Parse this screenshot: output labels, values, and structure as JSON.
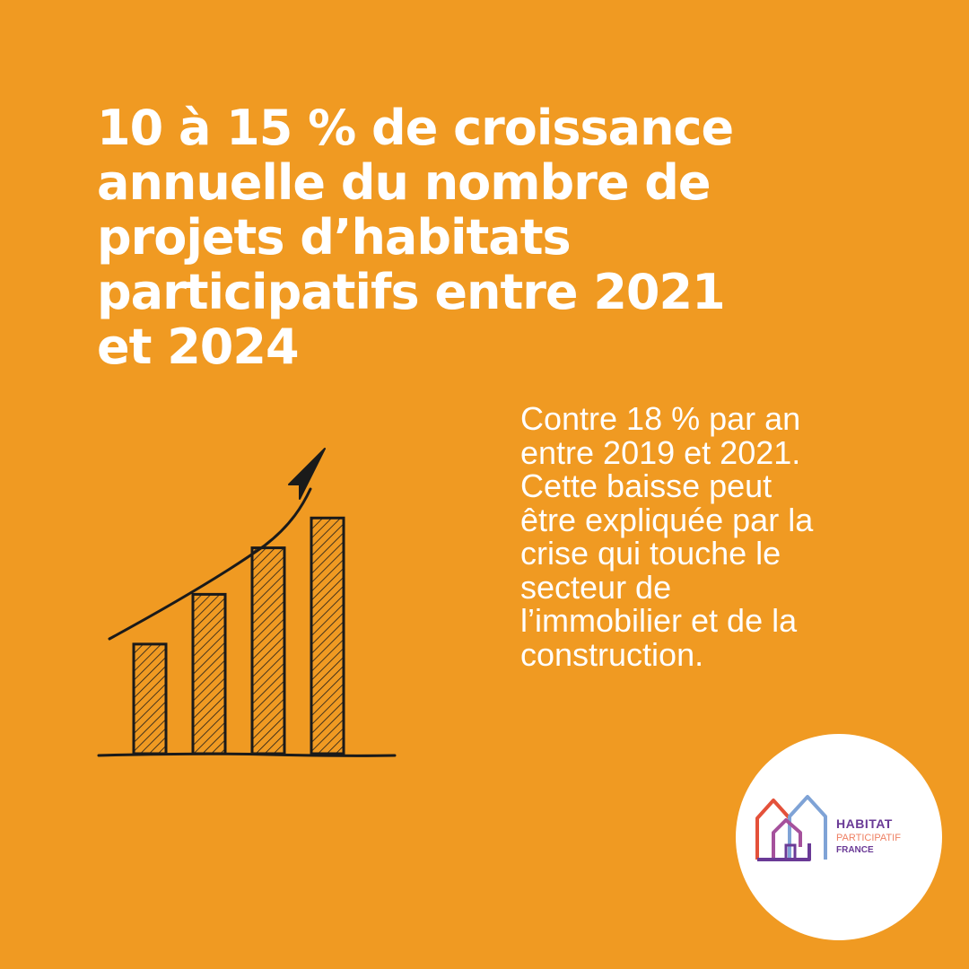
{
  "headline": {
    "lines": [
      "10 à 15 % de croissance",
      "annuelle du nombre de",
      "projets d’habitats",
      "participatifs entre 2021",
      "et 2024"
    ]
  },
  "body": {
    "lines": [
      "Contre 18 % par an",
      "entre 2019 et 2021.",
      "Cette baisse peut",
      "être expliquée par la",
      "crise qui touche le",
      "secteur de",
      "l’immobilier et de la",
      "construction."
    ]
  },
  "illustration": {
    "bar_levels": [
      0.33,
      0.48,
      0.62,
      0.71
    ],
    "bar_color": "#F09A22",
    "ink_color": "#1A1A1A",
    "icon": "rising-bar-chart-sketch-icon"
  },
  "logo": {
    "line1": "HABITAT",
    "line2": "PARTICIPATIF",
    "line3": "FRANCE",
    "colors": {
      "primary": "#6A3A96",
      "accent": "#EE7F62",
      "house_blue": "#7FA3D6",
      "house_red": "#E4513A"
    },
    "icon": "houses-logo-icon"
  },
  "colors": {
    "background": "#F09A22",
    "text": "#FFFFFF"
  }
}
